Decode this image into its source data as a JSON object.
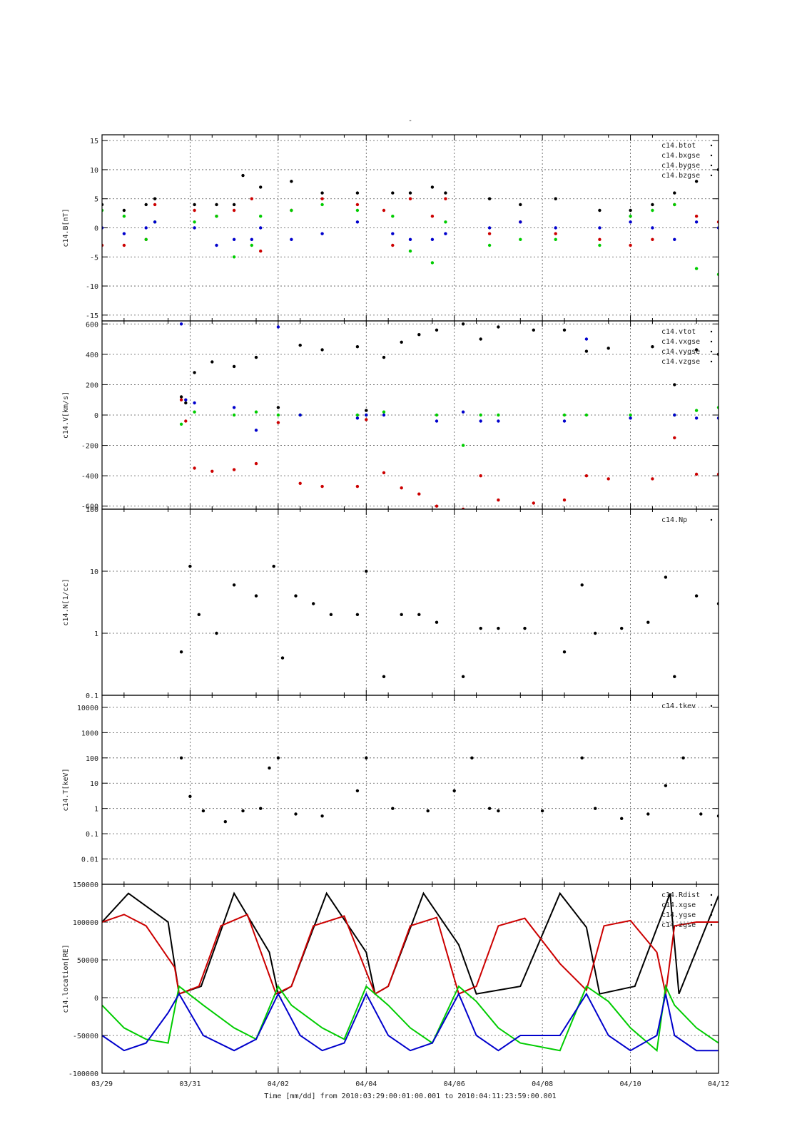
{
  "figure": {
    "title": "-",
    "xlabel": "Time [mm/dd]  from 2010:03:29:00:01:00.001  to  2010:04:11:23:59:00.001",
    "x_ticks": [
      "03/29",
      "03/31",
      "04/02",
      "04/04",
      "04/06",
      "04/08",
      "04/10",
      "04/12"
    ],
    "x_tick_days": [
      0,
      2,
      4,
      6,
      8,
      10,
      12,
      14
    ],
    "x_range_days": [
      0,
      14
    ],
    "grid": true,
    "legend_position": "top-right",
    "colors": {
      "black": "#000000",
      "red": "#cc0000",
      "green": "#00cc00",
      "blue": "#0000cc"
    }
  },
  "chart_data": [
    {
      "type": "scatter",
      "ylabel": "c14.B[nT]",
      "ylim": [
        -16,
        16
      ],
      "yscale": "linear",
      "y_ticks": [
        15,
        10,
        5,
        0,
        -5,
        -10,
        -15
      ],
      "legend": [
        "c14.btot",
        "c14.bxgse",
        "c14.bygse",
        "c14.bzgse"
      ],
      "series": [
        {
          "name": "c14.btot",
          "color": "#000000",
          "x": [
            0,
            0.5,
            1,
            1.2,
            2.1,
            2.6,
            3.0,
            3.2,
            3.6,
            4.3,
            5.0,
            5.8,
            6.6,
            7.0,
            7.5,
            7.8,
            8.8,
            9.5,
            10.3,
            11.3,
            12.0,
            12.5,
            13.0,
            13.5,
            14.0
          ],
          "y": [
            4,
            3,
            4,
            5,
            4,
            4,
            4,
            9,
            7,
            8,
            6,
            6,
            6,
            6,
            7,
            6,
            5,
            4,
            5,
            3,
            3,
            4,
            6,
            8,
            10
          ]
        },
        {
          "name": "c14.bxgse",
          "color": "#cc0000",
          "x": [
            0,
            0.5,
            1,
            1.2,
            2.1,
            2.6,
            3.0,
            3.4,
            3.6,
            4.3,
            5.0,
            5.8,
            6.4,
            6.6,
            7.0,
            7.5,
            7.8,
            8.8,
            9.5,
            10.3,
            11.3,
            12.0,
            12.5,
            13.0,
            13.5,
            14.0
          ],
          "y": [
            -3,
            -3,
            -2,
            4,
            3,
            2,
            3,
            5,
            -4,
            3,
            5,
            4,
            3,
            -3,
            5,
            2,
            5,
            -1,
            1,
            -1,
            -2,
            -3,
            -2,
            4,
            2,
            1
          ]
        },
        {
          "name": "c14.bygse",
          "color": "#00cc00",
          "x": [
            0,
            0.5,
            1,
            1.2,
            2.1,
            2.6,
            3.0,
            3.4,
            3.6,
            4.3,
            5.0,
            5.8,
            6.6,
            7.0,
            7.5,
            7.8,
            8.8,
            9.5,
            10.3,
            11.3,
            12.0,
            12.5,
            13.0,
            13.5,
            14.0
          ],
          "y": [
            3,
            2,
            -2,
            1,
            1,
            2,
            -5,
            -3,
            2,
            3,
            4,
            3,
            2,
            -4,
            -6,
            1,
            -3,
            -2,
            -2,
            -3,
            2,
            3,
            4,
            -7,
            -8
          ]
        },
        {
          "name": "c14.bzgse",
          "color": "#0000cc",
          "x": [
            0,
            0.5,
            1,
            1.2,
            2.1,
            2.6,
            3.0,
            3.4,
            3.6,
            4.3,
            5.0,
            5.8,
            6.6,
            7.0,
            7.5,
            7.8,
            8.8,
            9.5,
            10.3,
            11.3,
            12.0,
            12.5,
            13.0,
            13.5,
            14.0
          ],
          "y": [
            0,
            -1,
            0,
            1,
            0,
            -3,
            -2,
            -2,
            0,
            -2,
            -1,
            1,
            -1,
            -2,
            -2,
            -1,
            0,
            1,
            0,
            0,
            1,
            0,
            -2,
            1,
            0
          ]
        }
      ]
    },
    {
      "type": "scatter",
      "ylabel": "c14.V[km/s]",
      "ylim": [
        -620,
        620
      ],
      "yscale": "linear",
      "y_ticks": [
        600,
        400,
        200,
        0,
        -200,
        -400,
        -600
      ],
      "legend": [
        "c14.vtot",
        "c14.vxgse",
        "c14.vygse",
        "c14.vzgse"
      ],
      "series": [
        {
          "name": "c14.vtot",
          "color": "#000000",
          "x": [
            1.8,
            1.9,
            2.1,
            2.5,
            3.0,
            3.5,
            4.0,
            4.5,
            5.0,
            5.8,
            6.0,
            6.4,
            6.8,
            7.2,
            7.6,
            8.2,
            8.6,
            9.0,
            9.8,
            10.5,
            11.0,
            11.5,
            12.5,
            13.0,
            13.5,
            14.0
          ],
          "y": [
            120,
            80,
            280,
            350,
            320,
            380,
            50,
            460,
            430,
            450,
            30,
            380,
            480,
            530,
            560,
            600,
            500,
            580,
            560,
            560,
            420,
            440,
            450,
            200,
            430,
            400
          ]
        },
        {
          "name": "c14.vxgse",
          "color": "#cc0000",
          "x": [
            1.8,
            1.9,
            2.1,
            2.5,
            3.0,
            3.5,
            4.0,
            4.5,
            5.0,
            5.8,
            6.0,
            6.4,
            6.8,
            7.2,
            7.6,
            8.2,
            8.6,
            9.0,
            9.8,
            10.5,
            11.0,
            11.5,
            12.5,
            13.0,
            13.5,
            14.0
          ],
          "y": [
            100,
            -40,
            -350,
            -370,
            -360,
            -320,
            -50,
            -450,
            -470,
            -470,
            -30,
            -380,
            -480,
            -520,
            -600,
            -620,
            -400,
            -560,
            -580,
            -560,
            -400,
            -420,
            -420,
            -150,
            -390,
            -390
          ]
        },
        {
          "name": "c14.vygse",
          "color": "#00cc00",
          "x": [
            1.8,
            2.1,
            3.0,
            3.5,
            4.0,
            4.5,
            5.8,
            6.0,
            6.4,
            7.6,
            8.2,
            8.6,
            9.0,
            10.5,
            11.0,
            12.0,
            13.0,
            13.5,
            14.0
          ],
          "y": [
            -60,
            20,
            0,
            20,
            0,
            0,
            0,
            0,
            20,
            0,
            -200,
            0,
            0,
            0,
            0,
            0,
            0,
            30,
            50
          ]
        },
        {
          "name": "c14.vzgse",
          "color": "#0000cc",
          "x": [
            1.8,
            1.9,
            2.1,
            3.0,
            3.5,
            4.0,
            4.5,
            5.8,
            6.0,
            6.4,
            7.6,
            8.2,
            8.6,
            9.0,
            10.5,
            11.0,
            12.0,
            13.0,
            13.5,
            14.0
          ],
          "y": [
            600,
            100,
            80,
            50,
            -100,
            580,
            0,
            -20,
            0,
            0,
            -40,
            20,
            -40,
            -40,
            -40,
            500,
            -20,
            0,
            -20,
            -20
          ]
        }
      ]
    },
    {
      "type": "scatter",
      "ylabel": "c14.N[1/cc]",
      "ylim": [
        0.1,
        100
      ],
      "yscale": "log",
      "y_ticks": [
        100,
        10,
        1,
        0.1
      ],
      "legend": [
        "c14.Np"
      ],
      "series": [
        {
          "name": "c14.Np",
          "color": "#000000",
          "x": [
            1.8,
            2.0,
            2.2,
            2.6,
            3.0,
            3.5,
            3.9,
            4.1,
            4.4,
            4.8,
            5.2,
            5.8,
            6.0,
            6.4,
            6.8,
            7.2,
            7.6,
            8.2,
            8.6,
            9.0,
            9.6,
            10.5,
            10.9,
            11.2,
            11.8,
            12.4,
            12.8,
            13.0,
            13.5,
            14.0
          ],
          "y": [
            0.5,
            12,
            2,
            1,
            6,
            4,
            12,
            0.4,
            4,
            3,
            2,
            2,
            10,
            0.2,
            2,
            2,
            1.5,
            0.2,
            1.2,
            1.2,
            1.2,
            0.5,
            6,
            1,
            1.2,
            1.5,
            8,
            0.2,
            4,
            3
          ]
        }
      ]
    },
    {
      "type": "scatter",
      "ylabel": "c14.T[keV]",
      "ylim": [
        0.001,
        30000
      ],
      "yscale": "log",
      "y_ticks": [
        10000,
        1000,
        100,
        10,
        1,
        0.1,
        0.01
      ],
      "legend": [
        "c14.tkev"
      ],
      "series": [
        {
          "name": "c14.tkev",
          "color": "#000000",
          "x": [
            1.8,
            2.0,
            2.3,
            2.8,
            3.2,
            3.6,
            3.8,
            4.0,
            4.4,
            5.0,
            5.8,
            6.0,
            6.6,
            7.4,
            8.0,
            8.4,
            8.8,
            9.0,
            10.0,
            10.9,
            11.2,
            11.8,
            12.4,
            12.8,
            13.2,
            13.6,
            14.0
          ],
          "y": [
            100,
            3,
            0.8,
            0.3,
            0.8,
            1,
            40,
            100,
            0.6,
            0.5,
            5,
            100,
            1,
            0.8,
            5,
            100,
            1,
            0.8,
            0.8,
            100,
            1,
            0.4,
            0.6,
            8,
            100,
            0.6,
            0.5
          ]
        }
      ]
    },
    {
      "type": "line",
      "ylabel": "c14.location[RE]",
      "ylim": [
        -100000,
        150000
      ],
      "yscale": "linear",
      "y_ticks": [
        100000,
        50000,
        0,
        -50000,
        -100000
      ],
      "y_tick_labels": [
        "100000",
        "50000",
        "0",
        "-50000",
        "-100000"
      ],
      "top_label": "150000",
      "legend": [
        "c14.Rdist",
        "c14.xgse",
        "c14.ygse",
        "c14.zgse"
      ],
      "series": [
        {
          "name": "c14.Rdist",
          "color": "#000000",
          "x": [
            0,
            0.6,
            1.5,
            1.75,
            2.25,
            3.0,
            3.8,
            4.0,
            4.3,
            5.1,
            6.0,
            6.2,
            6.5,
            7.3,
            8.1,
            8.5,
            9.5,
            10.4,
            11.0,
            11.3,
            12.1,
            12.9,
            13.1,
            14.0
          ],
          "y": [
            100000,
            138000,
            100000,
            5000,
            15000,
            138000,
            60000,
            5000,
            15000,
            138000,
            60000,
            5000,
            15000,
            138000,
            70000,
            5000,
            15000,
            138000,
            93000,
            5000,
            15000,
            138000,
            5000,
            135000
          ]
        },
        {
          "name": "c14.xgse",
          "color": "#cc0000",
          "x": [
            0,
            0.5,
            1.0,
            1.65,
            1.75,
            2.2,
            2.7,
            3.3,
            3.95,
            4.3,
            4.8,
            5.5,
            6.2,
            6.5,
            7.0,
            7.6,
            8.1,
            8.5,
            9.0,
            9.6,
            10.4,
            11.0,
            11.4,
            12.0,
            12.6,
            12.8,
            13.0,
            13.5,
            14.0
          ],
          "y": [
            100000,
            110000,
            95000,
            40000,
            5000,
            15000,
            95000,
            110000,
            5000,
            15000,
            95000,
            108000,
            5000,
            15000,
            95000,
            106000,
            5000,
            15000,
            95000,
            105000,
            45000,
            10000,
            95000,
            102000,
            60000,
            5000,
            95000,
            100000,
            100000
          ]
        },
        {
          "name": "c14.ygse",
          "color": "#00cc00",
          "x": [
            0,
            0.5,
            1.0,
            1.5,
            1.75,
            2.3,
            3.0,
            3.5,
            4.0,
            4.3,
            5.0,
            5.5,
            6.0,
            6.5,
            7.0,
            7.5,
            8.1,
            8.5,
            9.0,
            9.5,
            10.4,
            11.0,
            11.5,
            12.0,
            12.6,
            12.8,
            13.0,
            13.5,
            14.0
          ],
          "y": [
            -10000,
            -40000,
            -55000,
            -60000,
            15000,
            -10000,
            -40000,
            -55000,
            15000,
            -10000,
            -40000,
            -55000,
            15000,
            -10000,
            -40000,
            -60000,
            15000,
            -5000,
            -40000,
            -60000,
            -70000,
            15000,
            -5000,
            -40000,
            -70000,
            15000,
            -10000,
            -40000,
            -60000
          ]
        },
        {
          "name": "c14.zgse",
          "color": "#0000cc",
          "x": [
            0,
            0.5,
            1.0,
            1.5,
            1.75,
            2.3,
            3.0,
            3.5,
            4.0,
            4.5,
            5.0,
            5.5,
            6.0,
            6.5,
            7.0,
            7.5,
            8.1,
            8.5,
            9.0,
            9.5,
            10.4,
            11.0,
            11.5,
            12.0,
            12.6,
            12.8,
            13.0,
            13.5,
            14.0
          ],
          "y": [
            -50000,
            -70000,
            -60000,
            -20000,
            5000,
            -50000,
            -70000,
            -55000,
            5000,
            -50000,
            -70000,
            -60000,
            5000,
            -50000,
            -70000,
            -60000,
            5000,
            -50000,
            -70000,
            -50000,
            -50000,
            5000,
            -50000,
            -70000,
            -50000,
            5000,
            -50000,
            -70000,
            -70000
          ]
        }
      ]
    }
  ]
}
